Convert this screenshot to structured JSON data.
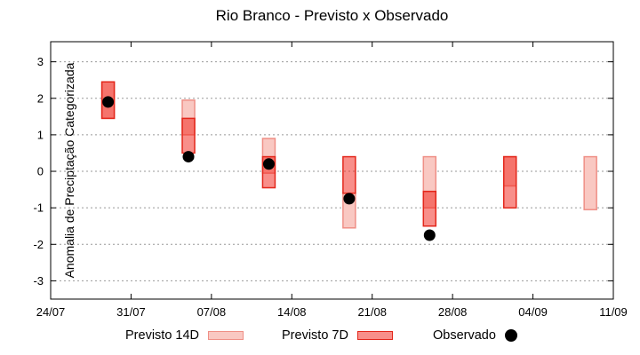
{
  "chart_data": {
    "type": "range-bar",
    "title": "Rio Branco - Previsto x Observado",
    "xlabel": "",
    "ylabel": "Anomalia de Preciptação Categorizada",
    "ylim": [
      -3.5,
      3.55
    ],
    "x_range_days": 49,
    "grid": "horizontal dashed gridlines at integer y values",
    "grid_color": "#999999",
    "axis_color": "#000000",
    "background": "#ffffff",
    "legend_position": "bottom",
    "x_ticks": [
      {
        "day": 0,
        "label": "24/07"
      },
      {
        "day": 7,
        "label": "31/07"
      },
      {
        "day": 14,
        "label": "07/08"
      },
      {
        "day": 21,
        "label": "14/08"
      },
      {
        "day": 28,
        "label": "21/08"
      },
      {
        "day": 35,
        "label": "28/08"
      },
      {
        "day": 42,
        "label": "04/09"
      },
      {
        "day": 49,
        "label": "11/09"
      }
    ],
    "y_ticks": [
      "3",
      "2",
      "1",
      "0",
      "-1",
      "-2",
      "-3"
    ],
    "series": [
      {
        "name": "Previsto 14D",
        "type": "box",
        "fill": "#f9c8c2",
        "border": "#ef8f86",
        "points": [
          {
            "date": "29/07",
            "day": 5,
            "low": 1.45,
            "high": 2.45
          },
          {
            "date": "05/08",
            "day": 12,
            "low": 1.0,
            "high": 1.95
          },
          {
            "date": "12/08",
            "day": 19,
            "low": -0.05,
            "high": 0.9
          },
          {
            "date": "19/08",
            "day": 26,
            "low": -1.55,
            "high": -0.6
          },
          {
            "date": "26/08",
            "day": 33,
            "low": -1.0,
            "high": 0.4
          },
          {
            "date": "02/09",
            "day": 40,
            "low": -0.4,
            "high": 0.4
          },
          {
            "date": "09/09",
            "day": 47,
            "low": -1.05,
            "high": 0.4
          }
        ]
      },
      {
        "name": "Previsto 7D",
        "type": "box",
        "fill": "rgba(242,32,22,0.5)",
        "border": "#e3271b",
        "points": [
          {
            "date": "29/07",
            "day": 5,
            "low": 1.45,
            "high": 2.45
          },
          {
            "date": "05/08",
            "day": 12,
            "low": 0.5,
            "high": 1.45
          },
          {
            "date": "12/08",
            "day": 19,
            "low": -0.45,
            "high": 0.4
          },
          {
            "date": "19/08",
            "day": 26,
            "low": -0.6,
            "high": 0.4
          },
          {
            "date": "26/08",
            "day": 33,
            "low": -1.5,
            "high": -0.55
          },
          {
            "date": "02/09",
            "day": 40,
            "low": -1.0,
            "high": 0.4
          }
        ]
      },
      {
        "name": "Observado",
        "type": "dot",
        "color": "#000000",
        "points": [
          {
            "date": "29/07",
            "day": 5,
            "value": 1.9
          },
          {
            "date": "05/08",
            "day": 12,
            "value": 0.4
          },
          {
            "date": "12/08",
            "day": 19,
            "value": 0.2
          },
          {
            "date": "19/08",
            "day": 26,
            "value": -0.75
          },
          {
            "date": "26/08",
            "day": 33,
            "value": -1.75
          }
        ]
      }
    ]
  }
}
